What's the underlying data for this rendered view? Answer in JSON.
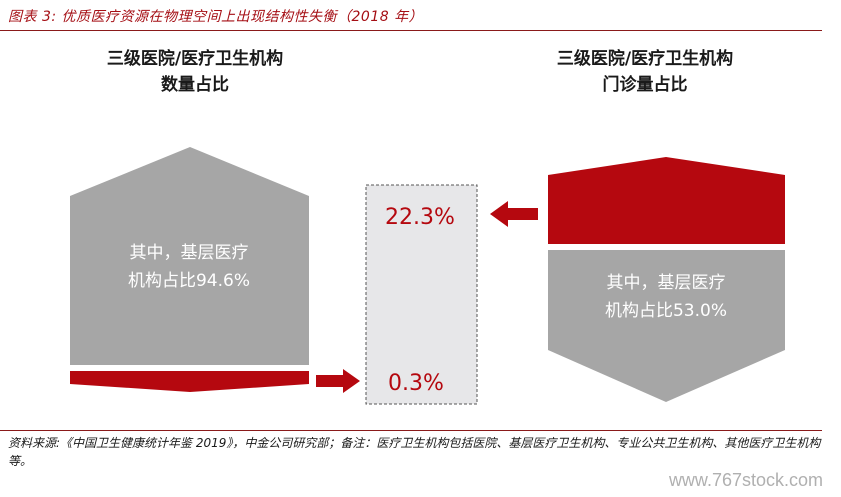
{
  "figure_title": "图表 3: 优质医疗资源在物理空间上出现结构性失衡（2018 年）",
  "chart_data": {
    "type": "infographic",
    "left_panel": {
      "title_line1": "三级医院/医疗卫生机构",
      "title_line2": "数量占比",
      "tertiary_share_label": "0.3%",
      "tertiary_share": 0.3,
      "grassroots_label_line1": "其中，基层医疗",
      "grassroots_label_line2": "机构占比94.6%",
      "grassroots_share": 94.6
    },
    "right_panel": {
      "title_line1": "三级医院/医疗卫生机构",
      "title_line2": "门诊量占比",
      "tertiary_share_label": "22.3%",
      "tertiary_share": 22.3,
      "grassroots_label_line1": "其中，基层医疗",
      "grassroots_label_line2": "机构占比53.0%",
      "grassroots_share": 53.0
    },
    "colors": {
      "tertiary": "#b5080f",
      "other": "#a6a6a6",
      "highlight_box": "#e7e7e9"
    }
  },
  "source_note": "资料来源:《中国卫生健康统计年鉴 2019》，中金公司研究部；备注：医疗卫生机构包括医院、基层医疗卫生机构、专业公共卫生机构、其他医疗卫生机构等。",
  "watermark": "www.767stock.com"
}
